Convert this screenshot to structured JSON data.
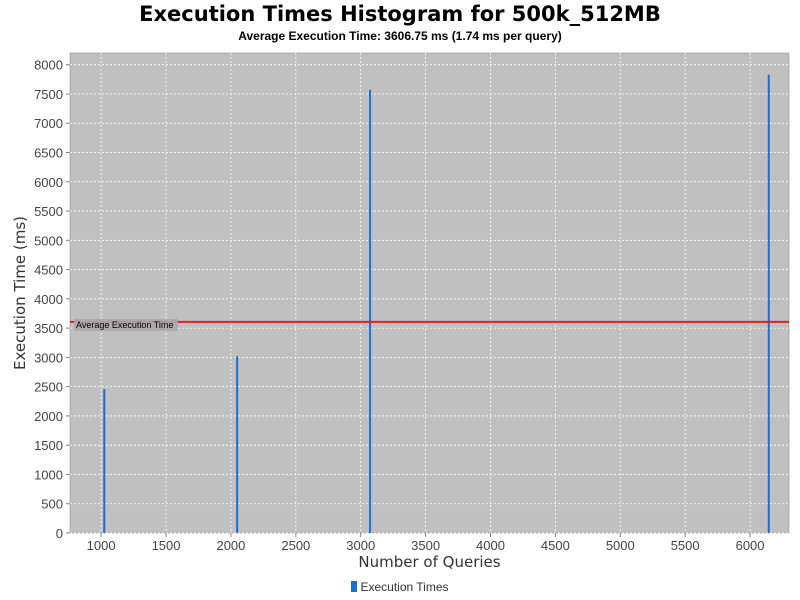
{
  "colors": {
    "plot_background": "#c0c0c0",
    "grid": "#ffffff",
    "series": "#1a6fd1",
    "average_line": "#e02020",
    "annotation_background": "#a8a8a8"
  },
  "chart_data": {
    "type": "bar",
    "title": "Execution Times Histogram for 500k_512MB",
    "subtitle": "Average Execution Time: 3606.75 ms (1.74 ms per query)",
    "xlabel": "Number of Queries",
    "ylabel": "Execution Time (ms)",
    "xlim": [
      760,
      6300
    ],
    "ylim": [
      0,
      8200
    ],
    "x_ticks": [
      1000,
      1500,
      2000,
      2500,
      3000,
      3500,
      4000,
      4500,
      5000,
      5500,
      6000
    ],
    "x_tick_labels": [
      "1000",
      "1500",
      "2000",
      "2500",
      "3000",
      "3500",
      "4000",
      "4500",
      "5000",
      "5500",
      "6000"
    ],
    "y_ticks": [
      0,
      500,
      1000,
      1500,
      2000,
      2500,
      3000,
      3500,
      4000,
      4500,
      5000,
      5500,
      6000,
      6500,
      7000,
      7500,
      8000
    ],
    "y_tick_labels": [
      "0",
      "500",
      "1000",
      "1500",
      "2000",
      "2500",
      "3000",
      "3500",
      "4000",
      "4500",
      "5000",
      "5500",
      "6000",
      "6500",
      "7000",
      "7500",
      "8000"
    ],
    "grid": true,
    "legend_position": "bottom",
    "series": [
      {
        "name": "Execution Times",
        "points": [
          {
            "x": 1024,
            "y": 2460
          },
          {
            "x": 2048,
            "y": 3020
          },
          {
            "x": 3072,
            "y": 7570
          },
          {
            "x": 6144,
            "y": 7830
          }
        ]
      }
    ],
    "reference_line": {
      "label": "Average Execution Time",
      "y": 3606.75
    }
  }
}
